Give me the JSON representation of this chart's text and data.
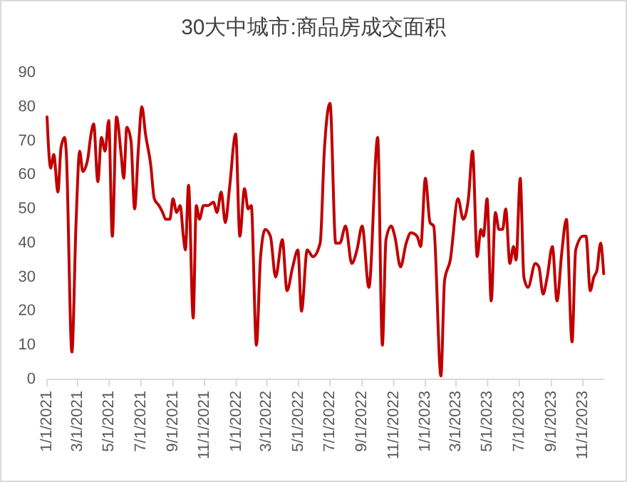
{
  "chart_data": {
    "type": "line",
    "title": "30大中城市:商品房成交面积",
    "x": [
      "2021-01-01",
      "2021-01-08",
      "2021-01-14",
      "2021-01-22",
      "2021-01-28",
      "2021-02-04",
      "2021-02-07",
      "2021-02-18",
      "2021-02-26",
      "2021-03-05",
      "2021-03-11",
      "2021-03-21",
      "2021-03-25",
      "2021-04-01",
      "2021-04-09",
      "2021-04-16",
      "2021-04-23",
      "2021-04-30",
      "2021-05-07",
      "2021-05-15",
      "2021-05-24",
      "2021-05-29",
      "2021-06-04",
      "2021-06-12",
      "2021-06-19",
      "2021-06-26",
      "2021-07-03",
      "2021-07-10",
      "2021-07-20",
      "2021-07-27",
      "2021-08-05",
      "2021-08-12",
      "2021-08-18",
      "2021-08-26",
      "2021-09-01",
      "2021-09-08",
      "2021-09-15",
      "2021-09-21",
      "2021-09-25",
      "2021-10-01",
      "2021-10-10",
      "2021-10-16",
      "2021-10-22",
      "2021-10-30",
      "2021-11-08",
      "2021-11-18",
      "2021-11-25",
      "2021-12-03",
      "2021-12-11",
      "2021-12-19",
      "2021-12-31",
      "2022-01-08",
      "2022-01-17",
      "2022-01-24",
      "2022-01-30",
      "2022-02-09",
      "2022-02-17",
      "2022-02-26",
      "2022-03-08",
      "2022-03-18",
      "2022-03-31",
      "2022-04-09",
      "2022-04-20",
      "2022-04-30",
      "2022-05-07",
      "2022-05-18",
      "2022-05-29",
      "2022-06-12",
      "2022-06-20",
      "2022-07-01",
      "2022-07-12",
      "2022-07-20",
      "2022-07-31",
      "2022-08-12",
      "2022-08-22",
      "2022-09-01",
      "2022-09-14",
      "2022-10-01",
      "2022-10-10",
      "2022-10-17",
      "2022-10-27",
      "2022-11-03",
      "2022-11-14",
      "2022-11-25",
      "2022-12-04",
      "2022-12-16",
      "2022-12-23",
      "2023-01-01",
      "2023-01-10",
      "2023-01-17",
      "2023-01-31",
      "2023-02-07",
      "2023-02-18",
      "2023-03-05",
      "2023-03-15",
      "2023-03-25",
      "2023-04-02",
      "2023-04-11",
      "2023-04-18",
      "2023-04-23",
      "2023-04-30",
      "2023-05-08",
      "2023-05-16",
      "2023-05-23",
      "2023-05-30",
      "2023-06-05",
      "2023-06-13",
      "2023-06-20",
      "2023-06-25",
      "2023-07-03",
      "2023-07-10",
      "2023-07-18",
      "2023-08-01",
      "2023-08-08",
      "2023-08-16",
      "2023-08-24",
      "2023-09-03",
      "2023-09-12",
      "2023-09-21",
      "2023-09-30",
      "2023-10-11",
      "2023-10-18",
      "2023-11-01",
      "2023-11-07",
      "2023-11-15",
      "2023-11-22",
      "2023-11-28",
      "2023-12-05",
      "2023-12-11"
    ],
    "series": [
      {
        "color": "#c00000",
        "values": [
          77,
          62,
          66,
          55,
          68,
          71,
          67,
          8,
          46,
          67,
          61,
          65,
          70,
          75,
          58,
          71,
          67,
          76,
          42,
          77,
          66,
          59,
          74,
          70,
          50,
          67,
          80,
          72,
          63,
          53,
          51,
          49,
          47,
          47,
          53,
          49,
          51,
          42,
          38,
          57,
          18,
          51,
          47,
          51,
          51,
          52,
          49,
          55,
          46,
          56,
          72,
          42,
          56,
          50,
          51,
          10,
          36,
          44,
          42,
          30,
          41,
          26,
          33,
          38,
          20,
          38,
          36,
          40,
          67,
          81,
          40,
          40,
          45,
          34,
          38,
          45,
          27,
          71,
          10,
          41,
          45,
          42,
          33,
          40,
          43,
          42,
          39,
          59,
          46,
          45,
          1,
          29,
          35,
          53,
          47,
          53,
          67,
          36,
          44,
          42,
          53,
          23,
          49,
          44,
          44,
          50,
          34,
          39,
          35,
          59,
          30,
          27,
          34,
          33,
          25,
          30,
          39,
          23,
          37,
          47,
          11,
          38,
          42,
          42,
          26,
          30,
          32,
          40,
          31
        ]
      }
    ],
    "xlim": [
      "2021-01-01",
      "2023-12-12"
    ],
    "xticks": [
      {
        "value": "2021-01-01",
        "label": "1/1/2021"
      },
      {
        "value": "2021-03-01",
        "label": "3/1/2021"
      },
      {
        "value": "2021-05-01",
        "label": "5/1/2021"
      },
      {
        "value": "2021-07-01",
        "label": "7/1/2021"
      },
      {
        "value": "2021-09-01",
        "label": "9/1/2021"
      },
      {
        "value": "2021-11-01",
        "label": "11/1/2021"
      },
      {
        "value": "2022-01-01",
        "label": "1/1/2022"
      },
      {
        "value": "2022-03-01",
        "label": "3/1/2022"
      },
      {
        "value": "2022-05-01",
        "label": "5/1/2022"
      },
      {
        "value": "2022-07-01",
        "label": "7/1/2022"
      },
      {
        "value": "2022-09-01",
        "label": "9/1/2022"
      },
      {
        "value": "2022-11-01",
        "label": "11/1/2022"
      },
      {
        "value": "2023-01-01",
        "label": "1/1/2023"
      },
      {
        "value": "2023-03-01",
        "label": "3/1/2023"
      },
      {
        "value": "2023-05-01",
        "label": "5/1/2023"
      },
      {
        "value": "2023-07-01",
        "label": "7/1/2023"
      },
      {
        "value": "2023-09-01",
        "label": "9/1/2023"
      },
      {
        "value": "2023-11-01",
        "label": "11/1/2023"
      }
    ],
    "ylim": [
      0,
      90
    ],
    "yticks": [
      0,
      10,
      20,
      30,
      40,
      50,
      60,
      70,
      80,
      90
    ],
    "grid": false,
    "marker": "none",
    "line_style": "solid"
  }
}
